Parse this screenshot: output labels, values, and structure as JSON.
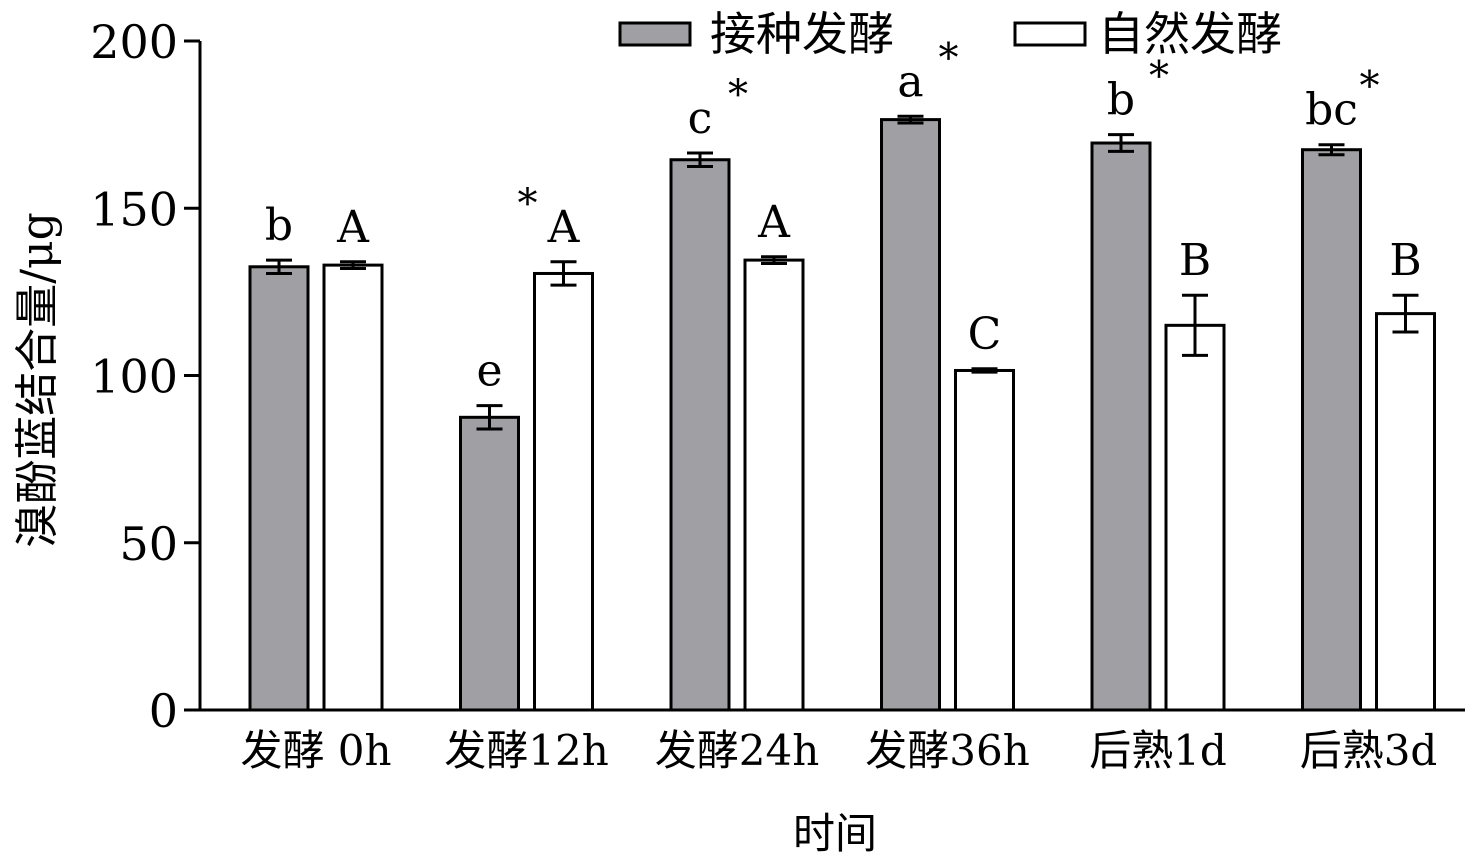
{
  "chart_data": {
    "type": "bar",
    "xlabel": "时间",
    "ylabel": "溴酚蓝结合量/μg",
    "ylim": [
      0,
      200
    ],
    "yticks": [
      0,
      50,
      100,
      150,
      200
    ],
    "grid": false,
    "legend_position": "top",
    "categories": [
      "发酵 0h",
      "发酵12h",
      "发酵24h",
      "发酵36h",
      "后熟1d",
      "后熟3d"
    ],
    "series": [
      {
        "name": "接种发酵",
        "color": "#a0a0a4",
        "values": [
          132.5,
          87.5,
          164.5,
          176.5,
          169.5,
          167.5
        ],
        "errors": [
          2,
          3.5,
          2,
          1,
          2.5,
          1.5
        ],
        "labels": [
          "b",
          "e",
          "c",
          "a",
          "b",
          "bc"
        ]
      },
      {
        "name": "自然发酵",
        "color": "#ffffff",
        "values": [
          133,
          130.5,
          134.5,
          101.5,
          115,
          118.5
        ],
        "errors": [
          1,
          3.5,
          1,
          0.5,
          9,
          5.5
        ],
        "labels": [
          "A",
          "A",
          "A",
          "C",
          "B",
          "B"
        ]
      }
    ],
    "significance": [
      "",
      "*",
      "*",
      "*",
      "*",
      "*"
    ]
  }
}
